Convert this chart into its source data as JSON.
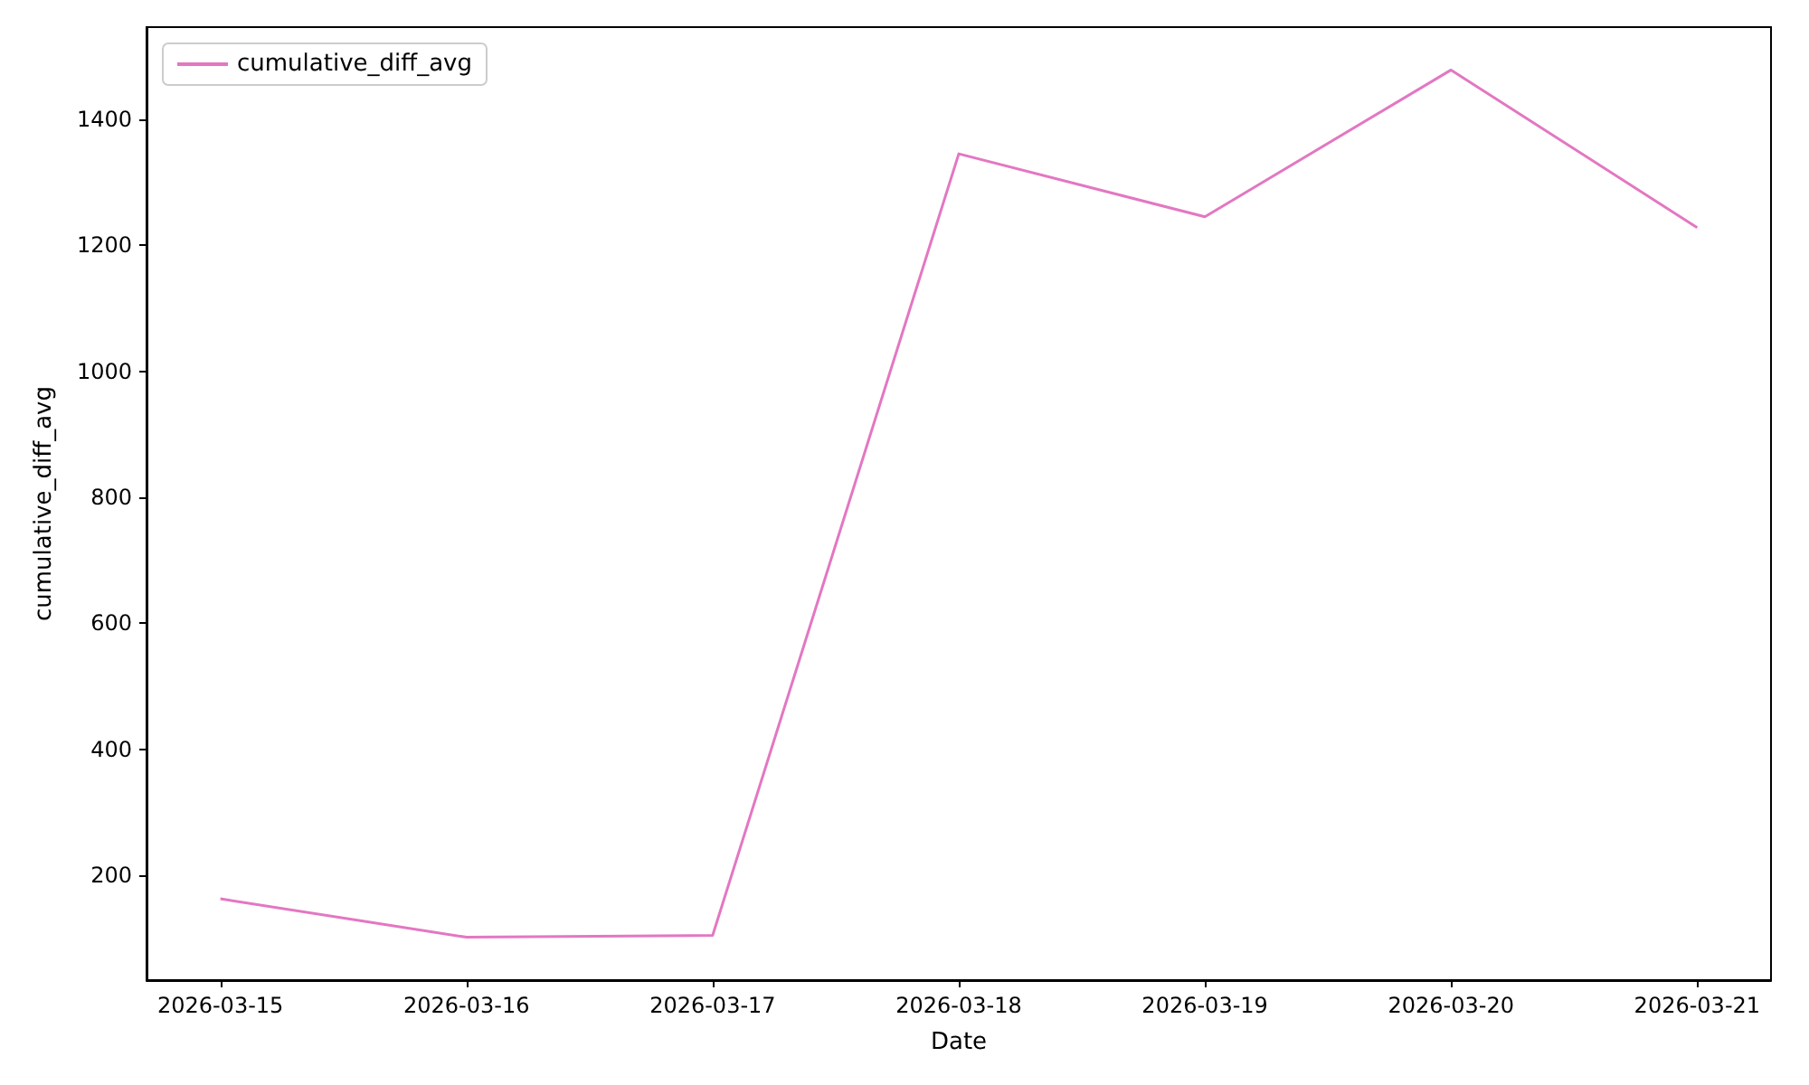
{
  "chart_data": {
    "type": "line",
    "xlabel": "Date",
    "ylabel": "cumulative_diff_avg",
    "x": [
      "2026-03-15",
      "2026-03-16",
      "2026-03-17",
      "2026-03-18",
      "2026-03-19",
      "2026-03-20",
      "2026-03-21"
    ],
    "series": [
      {
        "name": "cumulative_diff_avg",
        "color": "#e377c2",
        "values": [
          163,
          102,
          105,
          1345,
          1245,
          1478,
          1228
        ]
      }
    ],
    "xlim": [
      "2026-03-14T16:48",
      "2026-03-21T07:12"
    ],
    "xticks": [
      "2026-03-15",
      "2026-03-16",
      "2026-03-17",
      "2026-03-18",
      "2026-03-19",
      "2026-03-20",
      "2026-03-21"
    ],
    "ylim": [
      34,
      1546
    ],
    "yticks": [
      200,
      400,
      600,
      800,
      1000,
      1200,
      1400
    ],
    "grid": false,
    "legend": "top left",
    "marker": "none",
    "line_style": "solid"
  }
}
